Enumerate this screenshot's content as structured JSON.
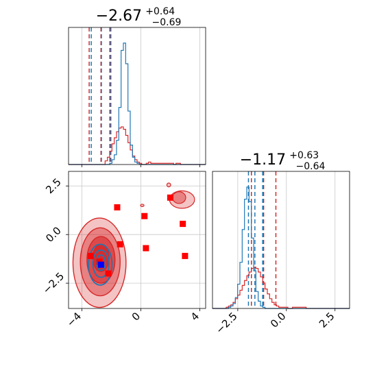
{
  "chart_data": {
    "type": "corner",
    "colors": {
      "posterior_a": "#1f77b4",
      "posterior_b": "#d62728",
      "truth_marker": "#0000ff",
      "sample_marker": "#ff0000"
    },
    "grid": true,
    "params": [
      {
        "title": {
          "median": "−2.67",
          "upper": "+0.64",
          "lower": "−0.69"
        },
        "range": [
          -4.9,
          4.4
        ],
        "ticks": [
          -4,
          0,
          4
        ],
        "tick_labels": [
          "−4",
          "0",
          "4"
        ],
        "quantiles_a": [
          -3.36,
          -2.67,
          -2.03
        ],
        "quantiles_b": [
          -3.5,
          -2.7,
          -2.1
        ],
        "hist_a": [
          0,
          0,
          0,
          0,
          0,
          0,
          0,
          0,
          0,
          0,
          0,
          0,
          0,
          0,
          0,
          0,
          0,
          0,
          0.01,
          0.04,
          0.08,
          0.2,
          0.47,
          0.94,
          1,
          0.83,
          0.44,
          0.16,
          0.06,
          0.02,
          0.01,
          0,
          0,
          0,
          0,
          0,
          0,
          0,
          0,
          0,
          0,
          0,
          0,
          0,
          0,
          0,
          0,
          0,
          0,
          0,
          0,
          0,
          0,
          0,
          0,
          0,
          0,
          0,
          0,
          0
        ],
        "hist_b": [
          0,
          0,
          0,
          0,
          0,
          0,
          0,
          0,
          0,
          0,
          0,
          0,
          0,
          0,
          0,
          0,
          0.03,
          0.06,
          0.11,
          0.17,
          0.22,
          0.27,
          0.3,
          0.31,
          0.29,
          0.24,
          0.18,
          0.12,
          0.07,
          0.04,
          0.02,
          0.01,
          0,
          0,
          0.01,
          0.02,
          0.01,
          0.01,
          0.01,
          0.01,
          0.01,
          0.01,
          0.01,
          0.01,
          0.01,
          0.01,
          0,
          0.01,
          0.01,
          0,
          0,
          0,
          0,
          0,
          0,
          0,
          0,
          0,
          0,
          0
        ]
      },
      {
        "title": {
          "median": "−1.17",
          "upper": "+0.63",
          "lower": "−0.64"
        },
        "range": [
          -3.8,
          3.25
        ],
        "ticks": [
          -2.5,
          0.0,
          2.5
        ],
        "tick_labels": [
          "−2.5",
          "0.0",
          "2.5"
        ],
        "quantiles_a": [
          -1.95,
          -1.62,
          -1.22
        ],
        "quantiles_b": [
          -1.8,
          -1.17,
          -0.54
        ],
        "hist_a": [
          0,
          0,
          0,
          0,
          0,
          0,
          0,
          0.01,
          0.02,
          0.04,
          0.09,
          0.2,
          0.38,
          0.65,
          0.9,
          1,
          0.88,
          0.58,
          0.31,
          0.14,
          0.06,
          0.02,
          0.01,
          0,
          0,
          0,
          0,
          0,
          0,
          0,
          0,
          0,
          0,
          0,
          0,
          0,
          0,
          0,
          0,
          0,
          0,
          0,
          0,
          0,
          0,
          0,
          0,
          0,
          0,
          0,
          0,
          0,
          0,
          0,
          0,
          0,
          0,
          0,
          0,
          0
        ],
        "hist_b": [
          0,
          0,
          0,
          0,
          0,
          0,
          0.01,
          0.02,
          0.03,
          0.05,
          0.08,
          0.11,
          0.15,
          0.19,
          0.23,
          0.27,
          0.3,
          0.33,
          0.34,
          0.33,
          0.3,
          0.26,
          0.21,
          0.16,
          0.12,
          0.08,
          0.05,
          0.03,
          0.02,
          0.01,
          0.01,
          0.01,
          0.01,
          0,
          0,
          0.01,
          0.01,
          0.01,
          0.01,
          0.01,
          0.01,
          0,
          0,
          0,
          0,
          0,
          0,
          0,
          0,
          0,
          0,
          0,
          0,
          0,
          0,
          0,
          0,
          0,
          0,
          0
        ]
      }
    ],
    "joint": {
      "contours_b": [
        {
          "cx": -2.8,
          "cy": -1.45,
          "rx": 1.8,
          "ry": 2.3
        },
        {
          "cx": -2.75,
          "cy": -1.4,
          "rx": 1.35,
          "ry": 1.75
        },
        {
          "cx": -2.7,
          "cy": -1.3,
          "rx": 0.95,
          "ry": 1.2
        },
        {
          "cx": -2.7,
          "cy": -1.2,
          "rx": 0.55,
          "ry": 0.7
        }
      ],
      "contours_a": [
        {
          "cx": -2.75,
          "cy": -1.55,
          "rx": 0.8,
          "ry": 1.05
        },
        {
          "cx": -2.7,
          "cy": -1.5,
          "rx": 0.55,
          "ry": 0.7
        },
        {
          "cx": -2.7,
          "cy": -1.45,
          "rx": 0.3,
          "ry": 0.4
        }
      ],
      "outlier_contours_b": [
        {
          "cx": 2.8,
          "cy": 1.8,
          "rx": 0.85,
          "ry": 0.45
        },
        {
          "cx": 2.6,
          "cy": 1.9,
          "rx": 0.45,
          "ry": 0.3
        },
        {
          "cx": 1.9,
          "cy": 2.55,
          "rx": 0.13,
          "ry": 0.1
        },
        {
          "cx": 0.1,
          "cy": 1.5,
          "rx": 0.12,
          "ry": 0.06
        }
      ],
      "samples": [
        [
          -3.4,
          -1.1
        ],
        [
          -2.8,
          -1.4
        ],
        [
          -2.2,
          -2.0
        ],
        [
          -1.6,
          1.4
        ],
        [
          -1.4,
          -0.5
        ],
        [
          0.25,
          0.95
        ],
        [
          0.35,
          -0.7
        ],
        [
          2.0,
          1.9
        ],
        [
          2.85,
          0.55
        ],
        [
          3.0,
          -1.1
        ]
      ],
      "truth": [
        -2.7,
        -1.55
      ]
    }
  }
}
